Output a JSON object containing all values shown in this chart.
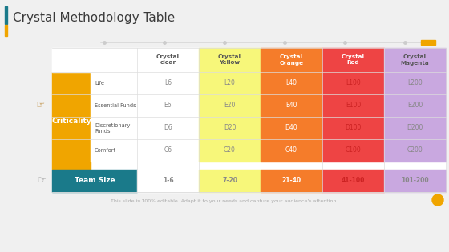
{
  "title": "Crystal Methodology Table",
  "title_fontsize": 11,
  "title_color": "#3a3a3a",
  "slide_bg": "#f0f0f0",
  "col_headers": [
    "Crystal\nclear",
    "Crystal\nYellow",
    "Crystal\nOrange",
    "Crystal\nRed",
    "Crystal\nMagenta"
  ],
  "col_header_bg": [
    "#ffffff",
    "#f7f77a",
    "#f57c2a",
    "#ee4444",
    "#c9a8e0"
  ],
  "col_header_text": [
    "#555555",
    "#555555",
    "#ffffff",
    "#ffffff",
    "#555555"
  ],
  "row_labels": [
    "Life",
    "Essential Funds",
    "Discretionary\nFunds",
    "Comfort"
  ],
  "row_data": [
    [
      "L6",
      "L20",
      "L40",
      "L100",
      "L200"
    ],
    [
      "E6",
      "E20",
      "E40",
      "E100",
      "E200"
    ],
    [
      "D6",
      "D20",
      "D40",
      "D100",
      "D200"
    ],
    [
      "C6",
      "C20",
      "C40",
      "C100",
      "C200"
    ]
  ],
  "team_size_row": [
    "1-6",
    "7-20",
    "21-40",
    "41-100",
    "101-200"
  ],
  "criticality_bg": "#f0a500",
  "criticality_text": "Criticality",
  "criticality_text_color": "#ffffff",
  "team_size_bg": "#1a7a8a",
  "team_size_text": "Team Size",
  "team_size_text_color": "#ffffff",
  "col_colors": [
    "#ffffff",
    "#f7f77a",
    "#f57c2a",
    "#ee4444",
    "#c9a8e0"
  ],
  "col_text_colors": [
    "#888888",
    "#888888",
    "#ffffff",
    "#cc2222",
    "#888888"
  ],
  "footer_text": "This slide is 100% editable. Adapt it to your needs and capture your audience's attention.",
  "footer_fontsize": 4.5,
  "dot_color": "#cccccc",
  "orange_accent": "#f0a500",
  "teal_accent": "#1a7a8a",
  "table_outer_bg": "#ffffff"
}
